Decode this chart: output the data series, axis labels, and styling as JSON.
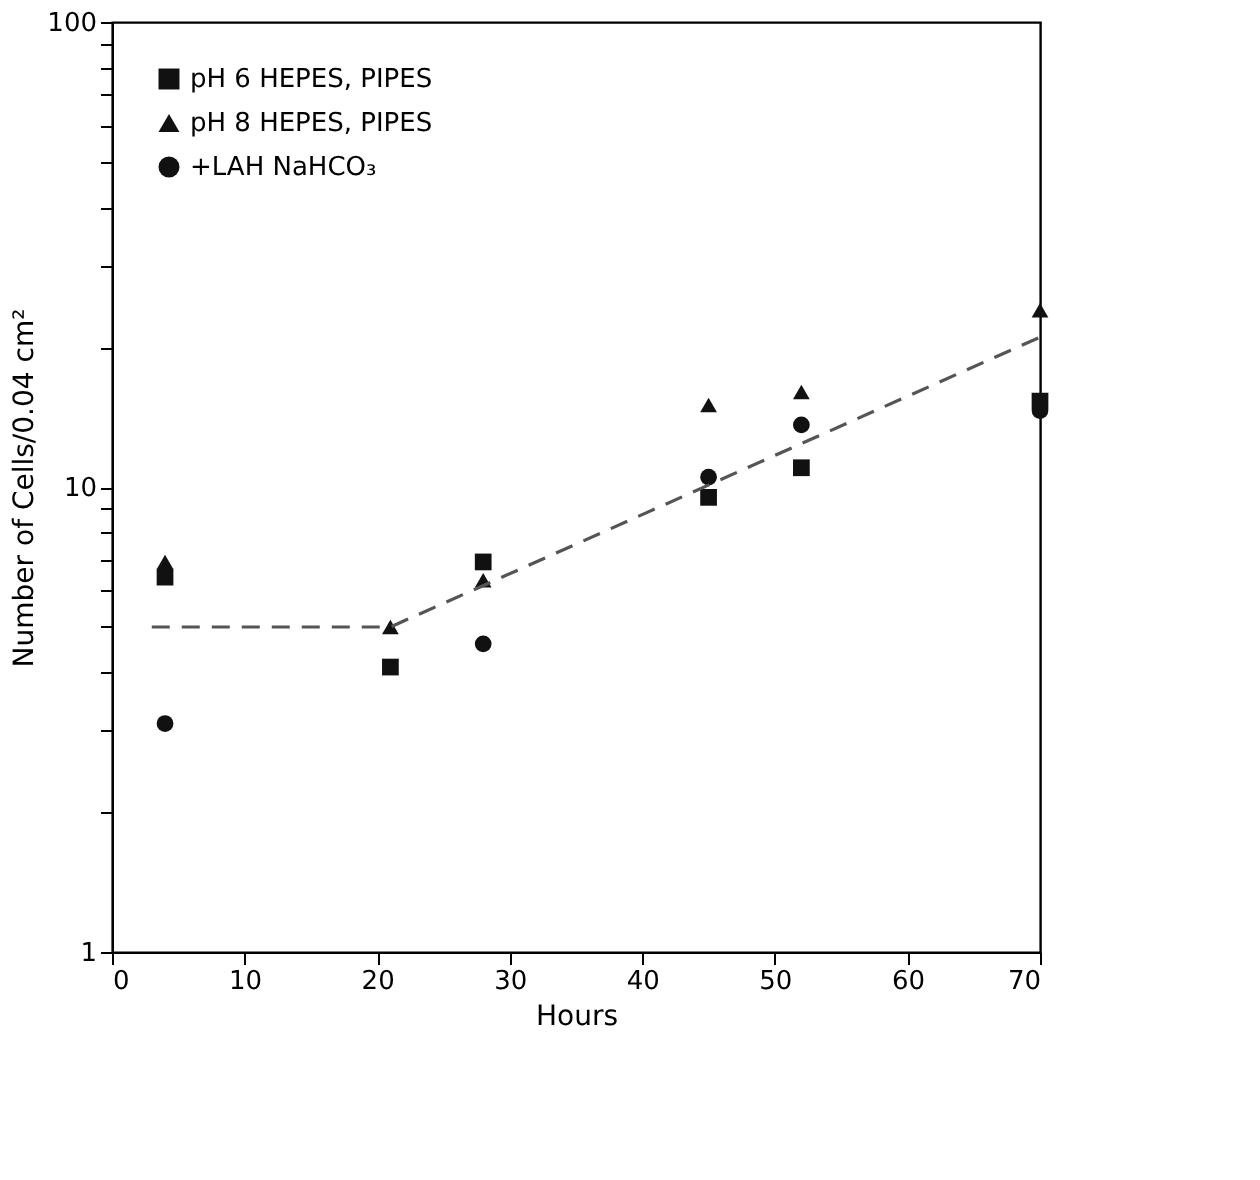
{
  "chart_data": {
    "type": "scatter",
    "xlabel": "Hours",
    "ylabel": "Number of Cells/0.04 cm²",
    "x": [
      4,
      21,
      28,
      45,
      52,
      70
    ],
    "xlim": [
      0,
      70
    ],
    "xticks": [
      0,
      10,
      20,
      30,
      40,
      50,
      60,
      70
    ],
    "ylim": [
      1,
      100
    ],
    "log": "y",
    "yticks": [
      1,
      {
        "value": 2,
        "label": null
      },
      {
        "value": 3,
        "label": null
      },
      {
        "value": 4,
        "label": null
      },
      {
        "value": 5,
        "label": null
      },
      {
        "value": 6,
        "label": null
      },
      {
        "value": 7,
        "label": null
      },
      {
        "value": 8,
        "label": null
      },
      {
        "value": 9,
        "label": null
      },
      10,
      {
        "value": 20,
        "label": null
      },
      {
        "value": 30,
        "label": null
      },
      {
        "value": 40,
        "label": null
      },
      {
        "value": 50,
        "label": null
      },
      {
        "value": 60,
        "label": null
      },
      {
        "value": 70,
        "label": null
      },
      {
        "value": 80,
        "label": null
      },
      {
        "value": 90,
        "label": null
      },
      100
    ],
    "grid": false,
    "legend": "top left",
    "series": [
      {
        "name": "pH 6  HEPES, PIPES",
        "color": "#111111",
        "marker": "square",
        "values": [
          6.4,
          4.1,
          6.9,
          9.5,
          11,
          15.3
        ]
      },
      {
        "name": "pH 8  HEPES, PIPES",
        "color": "#111111",
        "marker": "triangle",
        "values": [
          6.9,
          5.0,
          6.3,
          15,
          16,
          24
        ]
      },
      {
        "name": "+LAH NaHCO₃",
        "color": "#111111",
        "marker": "circle",
        "values": [
          3.1,
          null,
          4.6,
          10.5,
          13.6,
          14.6
        ]
      },
      {
        "type": "line",
        "color": "#555555",
        "line_style": "dashed",
        "marker": "none",
        "x": [
          3,
          21,
          70
        ],
        "values": [
          5,
          5,
          21
        ]
      }
    ]
  }
}
